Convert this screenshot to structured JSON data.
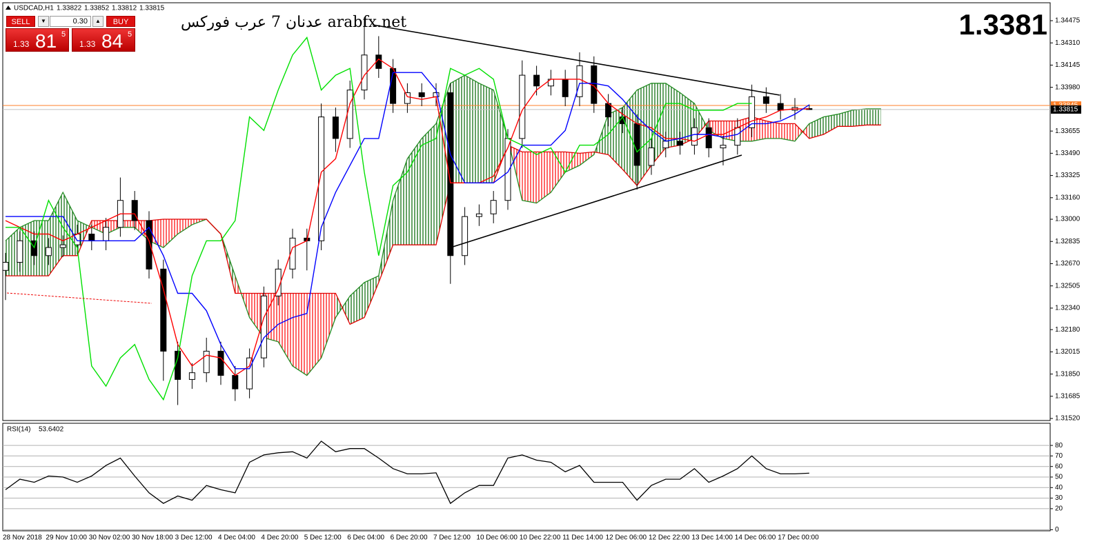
{
  "chart_data": [
    {
      "type": "candlestick",
      "title": "USDCAD,H1",
      "price_display": "1.3381",
      "watermark": {
        "arabic": "عدنان 7 عرب فوركس",
        "site": "arabfx.net"
      },
      "trade_panel": {
        "sell": "SELL",
        "buy": "BUY",
        "lots": "0.30",
        "bid": {
          "big": "1.33",
          "main": "81",
          "sup": "5"
        },
        "ask": {
          "big": "1.33",
          "main": "84",
          "sup": "5"
        }
      },
      "ask": 1.33845,
      "ask_color": "#ff7f27",
      "bid_line_color": "#c0c0c0",
      "bull_color": "#ffffff",
      "bear_color": "#000000",
      "grid": false,
      "ylim": [
        1.31505,
        1.34603
      ],
      "yticks": [
        1.34475,
        {
          "value": 1.3431,
          "label": "1.34310"
        },
        1.34145,
        {
          "value": 1.3398,
          "label": "1.33980"
        },
        1.33655,
        {
          "value": 1.3349,
          "label": "1.33490"
        },
        1.33325,
        {
          "value": 1.3316,
          "label": "1.33160"
        },
        {
          "value": 1.33,
          "label": "1.33000"
        },
        1.32835,
        {
          "value": 1.3267,
          "label": "1.32670"
        },
        1.32505,
        {
          "value": 1.3234,
          "label": "1.32340"
        },
        {
          "value": 1.3218,
          "label": "1.32180"
        },
        1.32015,
        {
          "value": 1.3185,
          "label": "1.31850"
        },
        1.31685,
        {
          "value": 1.3152,
          "label": "1.31520"
        }
      ],
      "categories": [
        "28 Nov 2018",
        null,
        null,
        "29 Nov 10:00",
        null,
        null,
        "30 Nov 02:00",
        null,
        null,
        "30 Nov 18:00",
        null,
        null,
        "3 Dec 12:00",
        null,
        null,
        "4 Dec 04:00",
        null,
        null,
        "4 Dec 20:00",
        null,
        null,
        "5 Dec 12:00",
        null,
        null,
        "6 Dec 04:00",
        null,
        null,
        "6 Dec 20:00",
        null,
        null,
        "7 Dec 12:00",
        null,
        null,
        "10 Dec 06:00",
        null,
        null,
        "10 Dec 22:00",
        null,
        null,
        "11 Dec 14:00",
        null,
        null,
        "12 Dec 06:00",
        null,
        null,
        "12 Dec 22:00",
        null,
        null,
        "13 Dec 14:00",
        null,
        null,
        "14 Dec 06:00",
        null,
        null,
        "17 Dec 00:00",
        null,
        null,
        null,
        null,
        null,
        null,
        null
      ],
      "open": [
        1.3262,
        1.3268,
        1.3284,
        1.3273,
        1.3279,
        1.3281,
        1.3289,
        1.3284,
        1.3294,
        1.3314,
        1.3299,
        1.3263,
        1.3202,
        1.3181,
        1.3186,
        1.3202,
        1.3184,
        1.3174,
        1.3197,
        1.3243,
        1.3263,
        1.3286,
        1.3284,
        1.3376,
        1.336,
        1.3396,
        1.3422,
        1.3412,
        1.3386,
        1.3394,
        1.3391,
        1.3394,
        1.3273,
        1.3302,
        1.3304,
        1.3314,
        1.336,
        1.3407,
        1.3399,
        1.3404,
        1.3391,
        1.3414,
        1.3386,
        1.3376,
        1.3371,
        1.334,
        1.3353,
        1.3358,
        1.3355,
        1.3368,
        1.3353,
        1.3355,
        1.3368,
        1.3391,
        1.3386,
        1.3381,
        1.33822,
        null,
        null,
        null,
        null,
        null
      ],
      "high": [
        1.3275,
        1.3291,
        1.3291,
        1.3286,
        1.3288,
        1.3296,
        1.3296,
        1.3301,
        1.3331,
        1.3321,
        1.3306,
        1.327,
        1.3209,
        1.3193,
        1.3212,
        1.3209,
        1.3191,
        1.3204,
        1.325,
        1.327,
        1.3293,
        1.3293,
        1.3386,
        1.3383,
        1.3403,
        1.345,
        1.3436,
        1.3419,
        1.3401,
        1.3401,
        1.3401,
        1.3401,
        1.3309,
        1.3311,
        1.3321,
        1.3367,
        1.3418,
        1.3414,
        1.3411,
        1.3411,
        1.3424,
        1.3421,
        1.3393,
        1.3383,
        1.3378,
        1.336,
        1.3365,
        1.3365,
        1.3375,
        1.3375,
        1.3362,
        1.3375,
        1.34,
        1.3398,
        1.3393,
        1.339,
        1.33852,
        null,
        null,
        null,
        null,
        null
      ],
      "low": [
        1.324,
        1.3261,
        1.3266,
        1.3266,
        1.3272,
        1.3274,
        1.3277,
        1.3277,
        1.3287,
        1.3292,
        1.3256,
        1.318,
        1.3162,
        1.3174,
        1.3179,
        1.3177,
        1.3165,
        1.3167,
        1.319,
        1.3236,
        1.3256,
        1.3262,
        1.3277,
        1.335,
        1.3353,
        1.3389,
        1.3405,
        1.3379,
        1.3379,
        1.3384,
        1.3384,
        1.3252,
        1.3266,
        1.3295,
        1.3297,
        1.3307,
        1.3353,
        1.3392,
        1.3392,
        1.3384,
        1.3384,
        1.3379,
        1.3369,
        1.3364,
        1.3322,
        1.3333,
        1.3346,
        1.3348,
        1.3348,
        1.3346,
        1.334,
        1.3348,
        1.3361,
        1.3379,
        1.3374,
        1.3374,
        1.33812,
        null,
        null,
        null,
        null,
        null
      ],
      "close": [
        1.3268,
        1.3284,
        1.3273,
        1.3279,
        1.3281,
        1.3289,
        1.3284,
        1.3294,
        1.3314,
        1.3299,
        1.3263,
        1.3202,
        1.3181,
        1.3186,
        1.3202,
        1.3184,
        1.3174,
        1.3197,
        1.3243,
        1.3263,
        1.3286,
        1.3284,
        1.3376,
        1.336,
        1.3396,
        1.3422,
        1.3412,
        1.3386,
        1.3394,
        1.3391,
        1.3394,
        1.3273,
        1.3302,
        1.3304,
        1.3314,
        1.336,
        1.3407,
        1.3399,
        1.3404,
        1.3391,
        1.3414,
        1.3386,
        1.3376,
        1.3371,
        1.334,
        1.3353,
        1.3358,
        1.3355,
        1.3368,
        1.3353,
        1.3355,
        1.3368,
        1.3391,
        1.3386,
        1.3381,
        1.3383,
        1.33815,
        null,
        null,
        null,
        null,
        null
      ],
      "cloud": {
        "up_color": "#006400",
        "down_color": "#ff0000",
        "a_color": "#228b22",
        "b_color": "#e00000",
        "a": [
          1.3284,
          1.3294,
          1.3299,
          1.3299,
          1.332,
          1.3299,
          1.3294,
          1.3289,
          1.3294,
          1.3294,
          1.3284,
          1.3279,
          1.3289,
          1.3296,
          1.33,
          1.3289,
          1.3258,
          1.3227,
          1.3212,
          1.3209,
          1.3191,
          1.3184,
          1.3197,
          1.3227,
          1.3243,
          1.3253,
          1.3258,
          1.3314,
          1.3345,
          1.336,
          1.3371,
          1.3401,
          1.3407,
          1.3401,
          1.3396,
          1.336,
          1.3314,
          1.3312,
          1.332,
          1.3335,
          1.334,
          1.3348,
          1.3378,
          1.3383,
          1.3396,
          1.3401,
          1.3401,
          1.3394,
          1.3386,
          1.3366,
          1.336,
          1.3358,
          1.3358,
          1.336,
          1.336,
          1.3358,
          1.3371,
          1.3376,
          1.3378,
          1.3381,
          1.3382,
          1.3382
        ],
        "b": [
          1.3258,
          1.3258,
          1.3258,
          1.3258,
          1.3273,
          1.3273,
          1.3299,
          1.3299,
          1.3299,
          1.3299,
          1.3299,
          1.33,
          1.33,
          1.33,
          1.33,
          1.3289,
          1.3245,
          1.3245,
          1.3245,
          1.3245,
          1.3245,
          1.3245,
          1.3245,
          1.3245,
          1.3222,
          1.3227,
          1.3253,
          1.3281,
          1.3281,
          1.3281,
          1.3281,
          1.3327,
          1.3327,
          1.3327,
          1.3327,
          1.3355,
          1.335,
          1.335,
          1.335,
          1.335,
          1.3349,
          1.335,
          1.3348,
          1.3337,
          1.3325,
          1.334,
          1.3353,
          1.3355,
          1.336,
          1.3373,
          1.3373,
          1.3373,
          1.3376,
          1.3373,
          1.3371,
          1.3371,
          1.336,
          1.3363,
          1.3369,
          1.3369,
          1.337,
          1.337
        ]
      },
      "lines": [
        {
          "color": "#ff0000",
          "values": [
            1.3299,
            1.3294,
            1.3289,
            1.3289,
            1.3284,
            1.3289,
            1.3294,
            1.3299,
            1.3304,
            1.3304,
            1.3284,
            1.3248,
            1.3207,
            1.3191,
            1.3199,
            1.3197,
            1.3184,
            1.3191,
            1.3227,
            1.3248,
            1.3279,
            1.3284,
            1.3335,
            1.3345,
            1.3386,
            1.3407,
            1.3419,
            1.3412,
            1.3391,
            1.3389,
            1.3391,
            1.3327,
            1.3327,
            1.3327,
            1.3332,
            1.3353,
            1.3381,
            1.3396,
            1.3404,
            1.3404,
            1.3404,
            1.3399,
            1.3386,
            1.3378,
            1.3371,
            1.3368,
            1.336,
            1.336,
            1.3358,
            1.3363,
            1.3363,
            1.3368,
            1.3373,
            1.3376,
            1.3381,
            1.3382,
            1.3382,
            null,
            null,
            null,
            null,
            null
          ]
        },
        {
          "color": "#0000ff",
          "values": [
            1.3302,
            1.3302,
            1.3302,
            1.3302,
            1.3302,
            1.3284,
            1.3284,
            1.3284,
            1.3284,
            1.3284,
            1.3294,
            1.3273,
            1.3245,
            1.3245,
            1.3232,
            1.3207,
            1.3189,
            1.3189,
            1.3212,
            1.3222,
            1.3227,
            1.323,
            1.3294,
            1.332,
            1.334,
            1.336,
            1.336,
            1.3409,
            1.3409,
            1.3409,
            1.3396,
            1.3348,
            1.3327,
            1.3327,
            1.3327,
            1.3335,
            1.3355,
            1.3355,
            1.3355,
            1.3366,
            1.3401,
            1.3401,
            1.3399,
            1.3389,
            1.3376,
            1.3366,
            1.3358,
            1.336,
            1.3363,
            1.3363,
            1.3361,
            1.3363,
            1.3371,
            1.3371,
            1.3373,
            1.3378,
            1.3385,
            null,
            null,
            null,
            null,
            null
          ]
        },
        {
          "color": "#00e000",
          "values": [
            1.3294,
            1.3294,
            1.3279,
            1.3314,
            1.3294,
            1.3279,
            1.3191,
            1.3176,
            1.3197,
            1.3207,
            1.3181,
            1.3166,
            1.3197,
            1.3258,
            1.3284,
            1.3284,
            1.3299,
            1.3376,
            1.3366,
            1.3396,
            1.3422,
            1.3435,
            1.3396,
            1.3407,
            1.3412,
            1.3335,
            1.3273,
            1.3325,
            1.3335,
            1.3355,
            1.336,
            1.3412,
            1.3407,
            1.3412,
            1.3404,
            1.336,
            1.3355,
            1.3348,
            1.3353,
            1.3335,
            1.3355,
            1.3355,
            1.3363,
            1.3376,
            1.335,
            1.336,
            1.3386,
            1.3386,
            1.3381,
            1.3381,
            1.3381,
            1.3386,
            1.3386,
            null,
            null,
            null,
            null,
            null,
            null,
            null,
            null,
            null
          ]
        }
      ]
    },
    {
      "type": "line",
      "title": "RSI(14)",
      "color": "#000000",
      "ylim": [
        -1,
        101
      ],
      "yticks": [
        0,
        20,
        30,
        40,
        50,
        60,
        70,
        80
      ],
      "grid": true,
      "values": [
        38,
        48,
        45,
        51,
        50,
        45,
        51,
        61,
        68,
        51,
        35,
        25,
        32,
        28,
        42,
        38,
        35,
        64,
        71,
        73,
        74,
        68,
        84,
        74,
        77,
        77,
        68,
        58,
        53,
        53,
        54,
        25,
        35,
        42,
        42,
        68,
        71,
        66,
        64,
        55,
        61,
        45,
        45,
        45,
        28,
        42,
        48,
        48,
        58,
        45,
        51,
        58,
        70,
        58,
        53,
        53,
        53.6402
      ]
    }
  ]
}
